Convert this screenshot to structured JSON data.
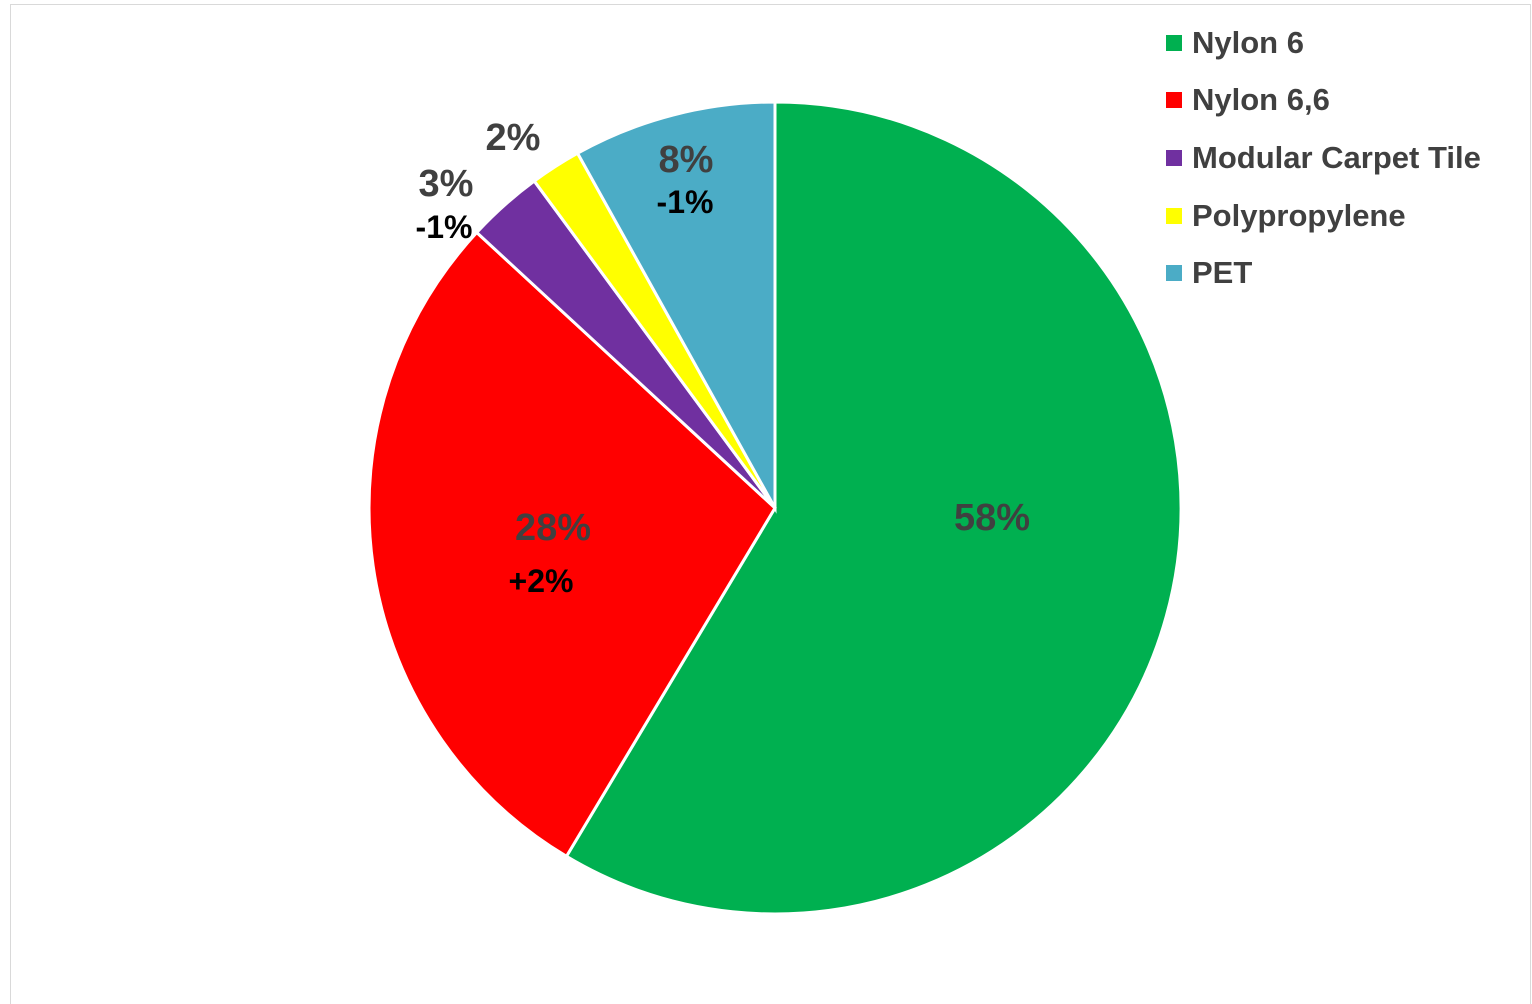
{
  "chart_data": {
    "type": "pie",
    "title": "",
    "start_angle_deg": 0,
    "direction": "clockwise",
    "legend_position": "top-right",
    "slices": [
      {
        "name": "Nylon 6",
        "value": 58,
        "label": "58%",
        "change": "",
        "color": "#00B050"
      },
      {
        "name": "Nylon 6,6",
        "value": 28,
        "label": "28%",
        "change": "+2%",
        "color": "#FF0000"
      },
      {
        "name": "Modular Carpet Tile",
        "value": 3,
        "label": "3%",
        "change": "-1%",
        "color": "#7030A0"
      },
      {
        "name": "Polypropylene",
        "value": 2,
        "label": "2%",
        "change": "",
        "color": "#FFFF00"
      },
      {
        "name": "PET",
        "value": 8,
        "label": "8%",
        "change": "-1%",
        "color": "#4BACC6"
      }
    ]
  }
}
